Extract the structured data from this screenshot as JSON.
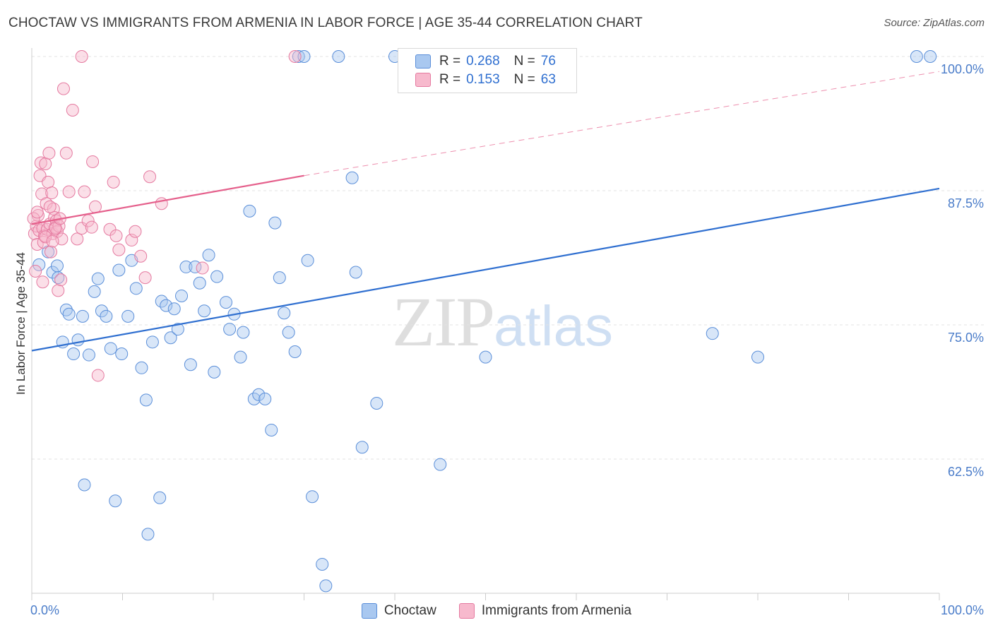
{
  "title": "CHOCTAW VS IMMIGRANTS FROM ARMENIA IN LABOR FORCE | AGE 35-44 CORRELATION CHART",
  "source": "Source: ZipAtlas.com",
  "watermark": {
    "zip": "ZIP",
    "atlas": "atlas"
  },
  "legend": {
    "r_label": "R =",
    "n_label": "N =",
    "series": [
      {
        "name": "Choctaw",
        "r": "0.268",
        "n": "76",
        "fill": "#a9c8f0",
        "stroke": "#5b8fd9"
      },
      {
        "name": "Immigrants from Armenia",
        "r": "0.153",
        "n": "63",
        "fill": "#f7b9cd",
        "stroke": "#e57aa0"
      }
    ]
  },
  "chart_data": {
    "type": "scatter",
    "title": "CHOCTAW VS IMMIGRANTS FROM ARMENIA IN LABOR FORCE | AGE 35-44 CORRELATION CHART",
    "xlabel": "",
    "ylabel": "In Labor Force | Age 35-44",
    "xlim": [
      0,
      100
    ],
    "ylim": [
      50,
      100
    ],
    "x_tick_labels": [
      "0.0%",
      "100.0%"
    ],
    "y_ticks": [
      62.5,
      75.0,
      87.5,
      100.0
    ],
    "y_tick_labels": [
      "62.5%",
      "75.0%",
      "87.5%",
      "100.0%"
    ],
    "series": [
      {
        "name": "Choctaw",
        "color": "#5b8fd9",
        "trend": {
          "x": [
            0,
            100
          ],
          "y": [
            72.6,
            87.7
          ],
          "dashed_from": null
        },
        "points": [
          [
            0.8,
            80.6
          ],
          [
            1.8,
            81.8
          ],
          [
            2.3,
            79.9
          ],
          [
            2.8,
            80.5
          ],
          [
            2.9,
            79.4
          ],
          [
            3.4,
            73.4
          ],
          [
            3.8,
            76.4
          ],
          [
            4.1,
            76.0
          ],
          [
            4.6,
            72.3
          ],
          [
            5.1,
            73.6
          ],
          [
            5.6,
            75.8
          ],
          [
            6.3,
            72.2
          ],
          [
            6.9,
            78.1
          ],
          [
            7.3,
            79.3
          ],
          [
            7.7,
            76.3
          ],
          [
            8.2,
            75.8
          ],
          [
            8.7,
            72.8
          ],
          [
            9.2,
            58.6
          ],
          [
            9.6,
            80.1
          ],
          [
            9.9,
            72.3
          ],
          [
            10.6,
            75.8
          ],
          [
            11.0,
            81.0
          ],
          [
            11.5,
            78.4
          ],
          [
            12.1,
            71.0
          ],
          [
            12.6,
            68.0
          ],
          [
            13.3,
            73.4
          ],
          [
            14.1,
            58.9
          ],
          [
            14.3,
            77.2
          ],
          [
            14.8,
            76.8
          ],
          [
            15.3,
            73.8
          ],
          [
            15.7,
            76.5
          ],
          [
            16.1,
            74.6
          ],
          [
            16.5,
            77.7
          ],
          [
            17.0,
            80.4
          ],
          [
            17.5,
            71.3
          ],
          [
            18.0,
            80.4
          ],
          [
            18.5,
            78.9
          ],
          [
            19.0,
            76.3
          ],
          [
            19.5,
            81.5
          ],
          [
            20.1,
            70.6
          ],
          [
            20.4,
            79.5
          ],
          [
            21.4,
            77.1
          ],
          [
            21.8,
            74.6
          ],
          [
            22.3,
            76.0
          ],
          [
            23.0,
            72.0
          ],
          [
            23.3,
            74.3
          ],
          [
            24.0,
            85.6
          ],
          [
            24.5,
            68.1
          ],
          [
            25.0,
            68.5
          ],
          [
            25.7,
            68.1
          ],
          [
            26.4,
            65.2
          ],
          [
            26.8,
            84.5
          ],
          [
            27.3,
            79.4
          ],
          [
            27.8,
            76.1
          ],
          [
            28.3,
            74.3
          ],
          [
            29.0,
            72.5
          ],
          [
            29.4,
            100.0
          ],
          [
            30.0,
            100.0
          ],
          [
            30.4,
            81.0
          ],
          [
            30.9,
            59.0
          ],
          [
            32.0,
            52.7
          ],
          [
            32.4,
            50.7
          ],
          [
            33.8,
            100.0
          ],
          [
            35.3,
            88.7
          ],
          [
            35.7,
            79.9
          ],
          [
            36.4,
            63.6
          ],
          [
            38.0,
            67.7
          ],
          [
            40.0,
            100.0
          ],
          [
            45.0,
            62.0
          ],
          [
            50.0,
            72.0
          ],
          [
            75.0,
            74.2
          ],
          [
            80.0,
            72.0
          ],
          [
            97.5,
            100.0
          ],
          [
            99.0,
            100.0
          ],
          [
            12.8,
            55.5
          ],
          [
            5.8,
            60.1
          ]
        ]
      },
      {
        "name": "Immigrants from Armenia",
        "color": "#e57aa0",
        "trend": {
          "x": [
            0,
            30
          ],
          "y": [
            84.4,
            88.9
          ],
          "dashed_to": [
            100,
            98.6
          ]
        },
        "points": [
          [
            0.3,
            83.5
          ],
          [
            0.5,
            84.2
          ],
          [
            0.6,
            82.5
          ],
          [
            0.7,
            85.2
          ],
          [
            0.8,
            83.8
          ],
          [
            0.9,
            88.9
          ],
          [
            1.0,
            90.1
          ],
          [
            1.1,
            87.2
          ],
          [
            1.2,
            84.0
          ],
          [
            1.3,
            82.7
          ],
          [
            1.4,
            83.3
          ],
          [
            1.5,
            90.0
          ],
          [
            1.6,
            86.3
          ],
          [
            1.7,
            83.9
          ],
          [
            1.8,
            88.3
          ],
          [
            1.9,
            91.0
          ],
          [
            2.0,
            84.4
          ],
          [
            2.1,
            81.8
          ],
          [
            2.2,
            87.3
          ],
          [
            2.3,
            83.5
          ],
          [
            2.4,
            85.8
          ],
          [
            2.5,
            85.0
          ],
          [
            2.6,
            84.1
          ],
          [
            2.7,
            84.7
          ],
          [
            2.8,
            83.7
          ],
          [
            2.9,
            78.2
          ],
          [
            3.0,
            84.2
          ],
          [
            3.2,
            79.2
          ],
          [
            3.3,
            83.0
          ],
          [
            3.5,
            97.0
          ],
          [
            3.8,
            91.0
          ],
          [
            4.1,
            87.4
          ],
          [
            4.5,
            95.0
          ],
          [
            5.0,
            83.0
          ],
          [
            5.5,
            84.0
          ],
          [
            5.8,
            87.4
          ],
          [
            6.2,
            84.7
          ],
          [
            6.7,
            90.2
          ],
          [
            7.0,
            86.0
          ],
          [
            7.3,
            70.3
          ],
          [
            8.6,
            83.9
          ],
          [
            9.0,
            88.3
          ],
          [
            9.3,
            83.3
          ],
          [
            9.6,
            82.0
          ],
          [
            11.0,
            82.9
          ],
          [
            11.4,
            83.7
          ],
          [
            12.0,
            81.4
          ],
          [
            12.5,
            79.4
          ],
          [
            13.0,
            88.8
          ],
          [
            14.3,
            86.3
          ],
          [
            18.8,
            80.3
          ],
          [
            29.0,
            100.0
          ],
          [
            5.5,
            100.0
          ],
          [
            0.4,
            80.0
          ],
          [
            1.2,
            79.0
          ],
          [
            0.2,
            84.9
          ],
          [
            0.6,
            85.5
          ],
          [
            1.5,
            83.2
          ],
          [
            2.0,
            86.0
          ],
          [
            2.6,
            84.0
          ],
          [
            3.1,
            84.9
          ],
          [
            6.6,
            84.1
          ],
          [
            2.3,
            82.8
          ]
        ]
      }
    ]
  }
}
